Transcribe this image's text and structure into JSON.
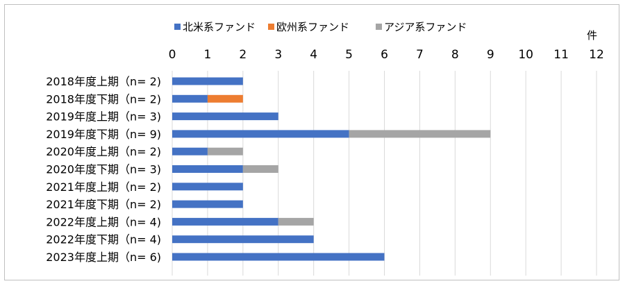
{
  "chart_data": {
    "type": "bar",
    "orientation": "horizontal",
    "stacked": true,
    "categories": [
      "2018年度上期（n=  2)",
      "2018年度下期（n=  2)",
      "2019年度上期（n=  3)",
      "2019年度下期（n=  9)",
      "2020年度上期（n=  2)",
      "2020年度下期（n=  3)",
      "2021年度上期（n=  2)",
      "2021年度下期（n=  2)",
      "2022年度上期（n=  4)",
      "2022年度下期（n=  4)",
      "2023年度上期（n=  6)"
    ],
    "series": [
      {
        "name": "北米系ファンド",
        "color": "#4472c4",
        "values": [
          2,
          1,
          3,
          5,
          1,
          2,
          2,
          2,
          3,
          4,
          6
        ]
      },
      {
        "name": "欧州系ファンド",
        "color": "#ed7d31",
        "values": [
          0,
          1,
          0,
          0,
          0,
          0,
          0,
          0,
          0,
          0,
          0
        ]
      },
      {
        "name": "アジア系ファンド",
        "color": "#a5a5a5",
        "values": [
          0,
          0,
          0,
          4,
          1,
          1,
          0,
          0,
          1,
          0,
          0
        ]
      }
    ],
    "xlim": [
      0,
      12
    ],
    "xticks": [
      0,
      1,
      2,
      3,
      4,
      5,
      6,
      7,
      8,
      9,
      10,
      11,
      12
    ],
    "x_unit": "件",
    "x_axis_position": "top",
    "grid": true,
    "legend": "top"
  }
}
